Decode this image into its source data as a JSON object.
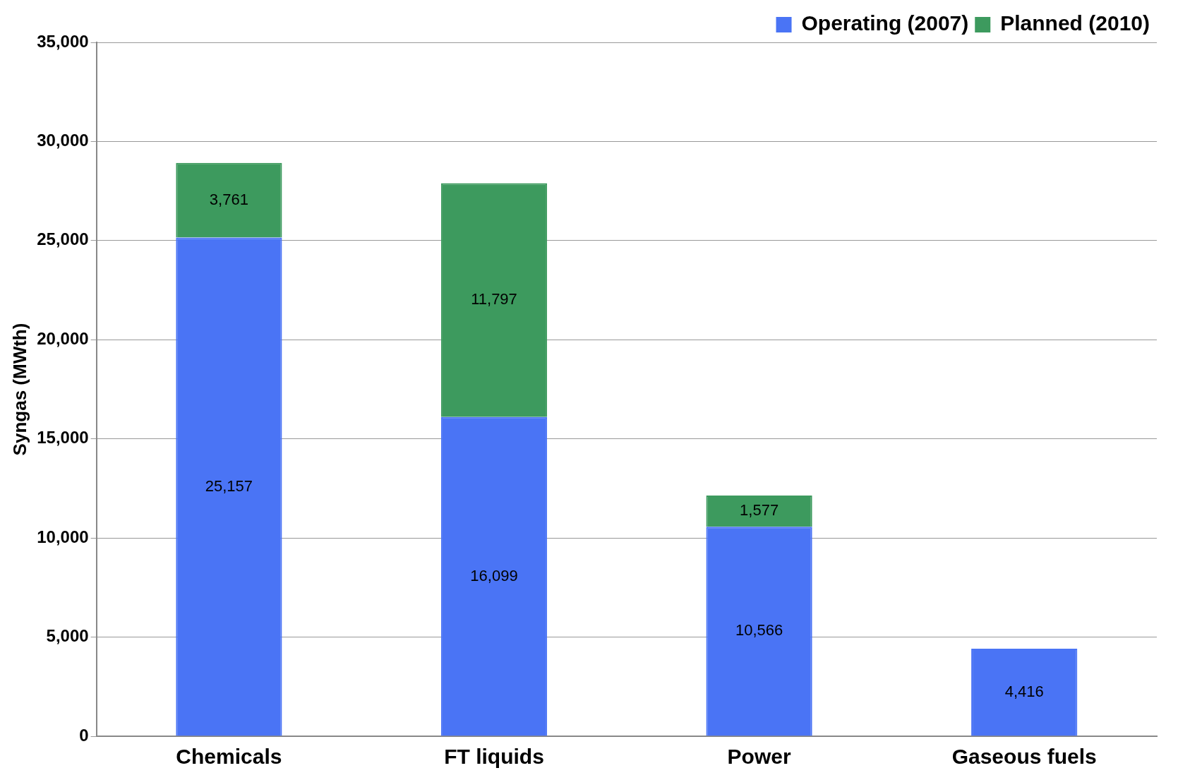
{
  "chart_data": {
    "type": "bar",
    "stacked": true,
    "ylabel": "Syngas (MWth)",
    "categories": [
      "Chemicals",
      "FT liquids",
      "Power",
      "Gaseous fuels"
    ],
    "series": [
      {
        "name": "Operating (2007)",
        "color": "#4a74f5",
        "values": [
          25157,
          16099,
          10566,
          4416
        ],
        "value_labels": [
          "25,157",
          "16,099",
          "10,566",
          "4,416"
        ]
      },
      {
        "name": "Planned (2010)",
        "color": "#3d9a5e",
        "values": [
          3761,
          11797,
          1577,
          null
        ],
        "value_labels": [
          "3,761",
          "11,797",
          "1,577",
          null
        ]
      }
    ],
    "ylim": [
      0,
      35000
    ],
    "yticks": [
      {
        "value": 0,
        "label": "0"
      },
      {
        "value": 5000,
        "label": "5,000"
      },
      {
        "value": 10000,
        "label": "10,000"
      },
      {
        "value": 15000,
        "label": "15,000"
      },
      {
        "value": 20000,
        "label": "20,000"
      },
      {
        "value": 25000,
        "label": "25,000"
      },
      {
        "value": 30000,
        "label": "30,000"
      },
      {
        "value": 35000,
        "label": "35,000"
      }
    ],
    "grid": "y",
    "legend": "top right"
  }
}
